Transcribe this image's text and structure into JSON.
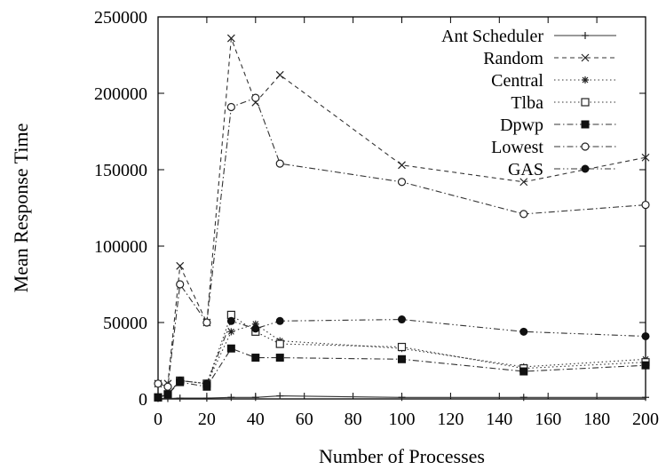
{
  "chart_data": {
    "type": "line",
    "xlabel": "Number of Processes",
    "ylabel": "Mean Response Time",
    "xlim": [
      0,
      200
    ],
    "ylim": [
      0,
      250000
    ],
    "xticks": [
      0,
      20,
      40,
      60,
      80,
      100,
      120,
      140,
      160,
      180,
      200
    ],
    "yticks": [
      0,
      50000,
      100000,
      150000,
      200000,
      250000
    ],
    "grid": false,
    "legend_position": "top-right",
    "series": [
      {
        "name": "Ant Scheduler",
        "marker": "plus",
        "dash": "solid",
        "x": [
          0,
          4,
          9,
          20,
          30,
          40,
          50,
          100,
          150,
          200
        ],
        "y": [
          300,
          300,
          500,
          500,
          1000,
          1000,
          2000,
          1000,
          1000,
          1000
        ]
      },
      {
        "name": "Random",
        "marker": "cross",
        "dash": "dashed",
        "x": [
          0,
          4,
          9,
          20,
          30,
          40,
          50,
          100,
          150,
          200
        ],
        "y": [
          10000,
          10000,
          87000,
          50000,
          236000,
          194000,
          212000,
          153000,
          142000,
          158000
        ]
      },
      {
        "name": "Central",
        "marker": "star",
        "dash": "dotted",
        "x": [
          0,
          4,
          9,
          20,
          30,
          40,
          50,
          100,
          150,
          200
        ],
        "y": [
          1000,
          3000,
          12000,
          10000,
          44000,
          49000,
          38000,
          33000,
          21000,
          26000
        ]
      },
      {
        "name": "Tlba",
        "marker": "open-square",
        "dash": "dotted",
        "x": [
          0,
          4,
          9,
          20,
          30,
          40,
          50,
          100,
          150,
          200
        ],
        "y": [
          1000,
          3000,
          12000,
          10000,
          55000,
          44000,
          36000,
          34000,
          20000,
          24000
        ]
      },
      {
        "name": "Dpwp",
        "marker": "filled-square",
        "dash": "dashdot",
        "x": [
          0,
          4,
          9,
          20,
          30,
          40,
          50,
          100,
          150,
          200
        ],
        "y": [
          1000,
          3000,
          11000,
          8000,
          33000,
          27000,
          27000,
          26000,
          18000,
          22000
        ]
      },
      {
        "name": "Lowest",
        "marker": "open-circle",
        "dash": "dashdot",
        "x": [
          0,
          4,
          9,
          20,
          30,
          40,
          50,
          100,
          150,
          200
        ],
        "y": [
          10000,
          8000,
          75000,
          50000,
          191000,
          197000,
          154000,
          142000,
          121000,
          127000
        ]
      },
      {
        "name": "GAS",
        "marker": "filled-circle",
        "dash": "dashdotdot",
        "x": [
          0,
          4,
          9,
          20,
          30,
          40,
          50,
          100,
          150,
          200
        ],
        "y": [
          1000,
          3000,
          12000,
          10000,
          51000,
          46000,
          51000,
          52000,
          44000,
          41000
        ]
      }
    ]
  }
}
